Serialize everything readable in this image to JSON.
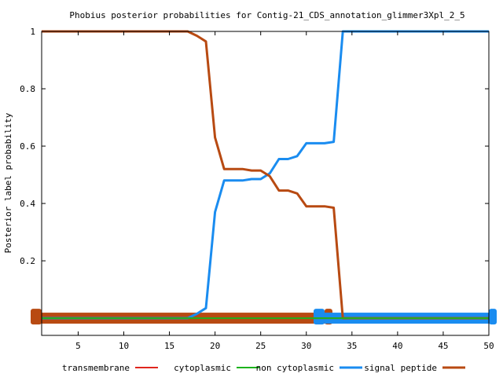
{
  "chart_data": {
    "type": "line",
    "title": "Phobius posterior probabilities for Contig-21_CDS_annotation_glimmer3Xpl_2_5",
    "xlabel": "",
    "ylabel": "Posterior label probability",
    "xlim": [
      1,
      50
    ],
    "ylim": [
      -0.06,
      1
    ],
    "x_ticks": [
      5,
      10,
      15,
      20,
      25,
      30,
      35,
      40,
      45,
      50
    ],
    "x_tick_labels": [
      "5",
      "10",
      "15",
      "20",
      "25",
      "30",
      "35",
      "40",
      "45",
      "50"
    ],
    "y_ticks": [
      0.2,
      0.4,
      0.6,
      0.8,
      1
    ],
    "y_tick_labels": [
      "0.2",
      "0.4",
      "0.6",
      "0.8",
      "1"
    ],
    "grid": false,
    "legend_position": "bottom",
    "series": [
      {
        "name": "transmembrane",
        "color": "#e0261e",
        "x": [
          1,
          50
        ],
        "values": [
          0,
          0
        ]
      },
      {
        "name": "cytoplasmic",
        "color": "#1db31d",
        "x": [
          1,
          50
        ],
        "values": [
          0,
          0
        ]
      },
      {
        "name": "non cytoplasmic",
        "color": "#1a8cf0",
        "x": [
          1,
          2,
          3,
          4,
          5,
          6,
          7,
          8,
          9,
          10,
          11,
          12,
          13,
          14,
          15,
          16,
          17,
          18,
          19,
          20,
          21,
          22,
          23,
          24,
          25,
          26,
          27,
          28,
          29,
          30,
          31,
          32,
          33,
          34,
          35,
          36,
          37,
          38,
          39,
          40,
          41,
          42,
          43,
          44,
          45,
          46,
          47,
          48,
          49,
          50
        ],
        "values": [
          0,
          0,
          0,
          0,
          0,
          0,
          0,
          0,
          0,
          0,
          0,
          0,
          0,
          0,
          0,
          0,
          0,
          0.015,
          0.035,
          0.37,
          0.48,
          0.48,
          0.48,
          0.485,
          0.485,
          0.505,
          0.555,
          0.555,
          0.565,
          0.61,
          0.61,
          0.61,
          0.615,
          1,
          1,
          1,
          1,
          1,
          1,
          1,
          1,
          1,
          1,
          1,
          1,
          1,
          1,
          1,
          1,
          1
        ]
      },
      {
        "name": "signal peptide",
        "color": "#b84a12",
        "x": [
          1,
          2,
          3,
          4,
          5,
          6,
          7,
          8,
          9,
          10,
          11,
          12,
          13,
          14,
          15,
          16,
          17,
          18,
          19,
          20,
          21,
          22,
          23,
          24,
          25,
          26,
          27,
          28,
          29,
          30,
          31,
          32,
          33,
          34,
          35,
          36,
          37,
          38,
          39,
          40,
          41,
          42,
          43,
          44,
          45,
          46,
          47,
          48,
          49,
          50
        ],
        "values": [
          1,
          1,
          1,
          1,
          1,
          1,
          1,
          1,
          1,
          1,
          1,
          1,
          1,
          1,
          1,
          1,
          1,
          0.985,
          0.965,
          0.63,
          0.52,
          0.52,
          0.52,
          0.515,
          0.515,
          0.495,
          0.445,
          0.445,
          0.435,
          0.39,
          0.39,
          0.39,
          0.385,
          0,
          0,
          0,
          0,
          0,
          0,
          0,
          0,
          0,
          0,
          0,
          0,
          0,
          0,
          0,
          0,
          0
        ]
      }
    ],
    "region_bars": [
      {
        "label": "signal peptide",
        "color": "#b84a12",
        "start": 1,
        "end": 32
      },
      {
        "label": "non cytoplasmic",
        "color": "#1a8cf0",
        "start": 32,
        "end": 50
      }
    ]
  }
}
